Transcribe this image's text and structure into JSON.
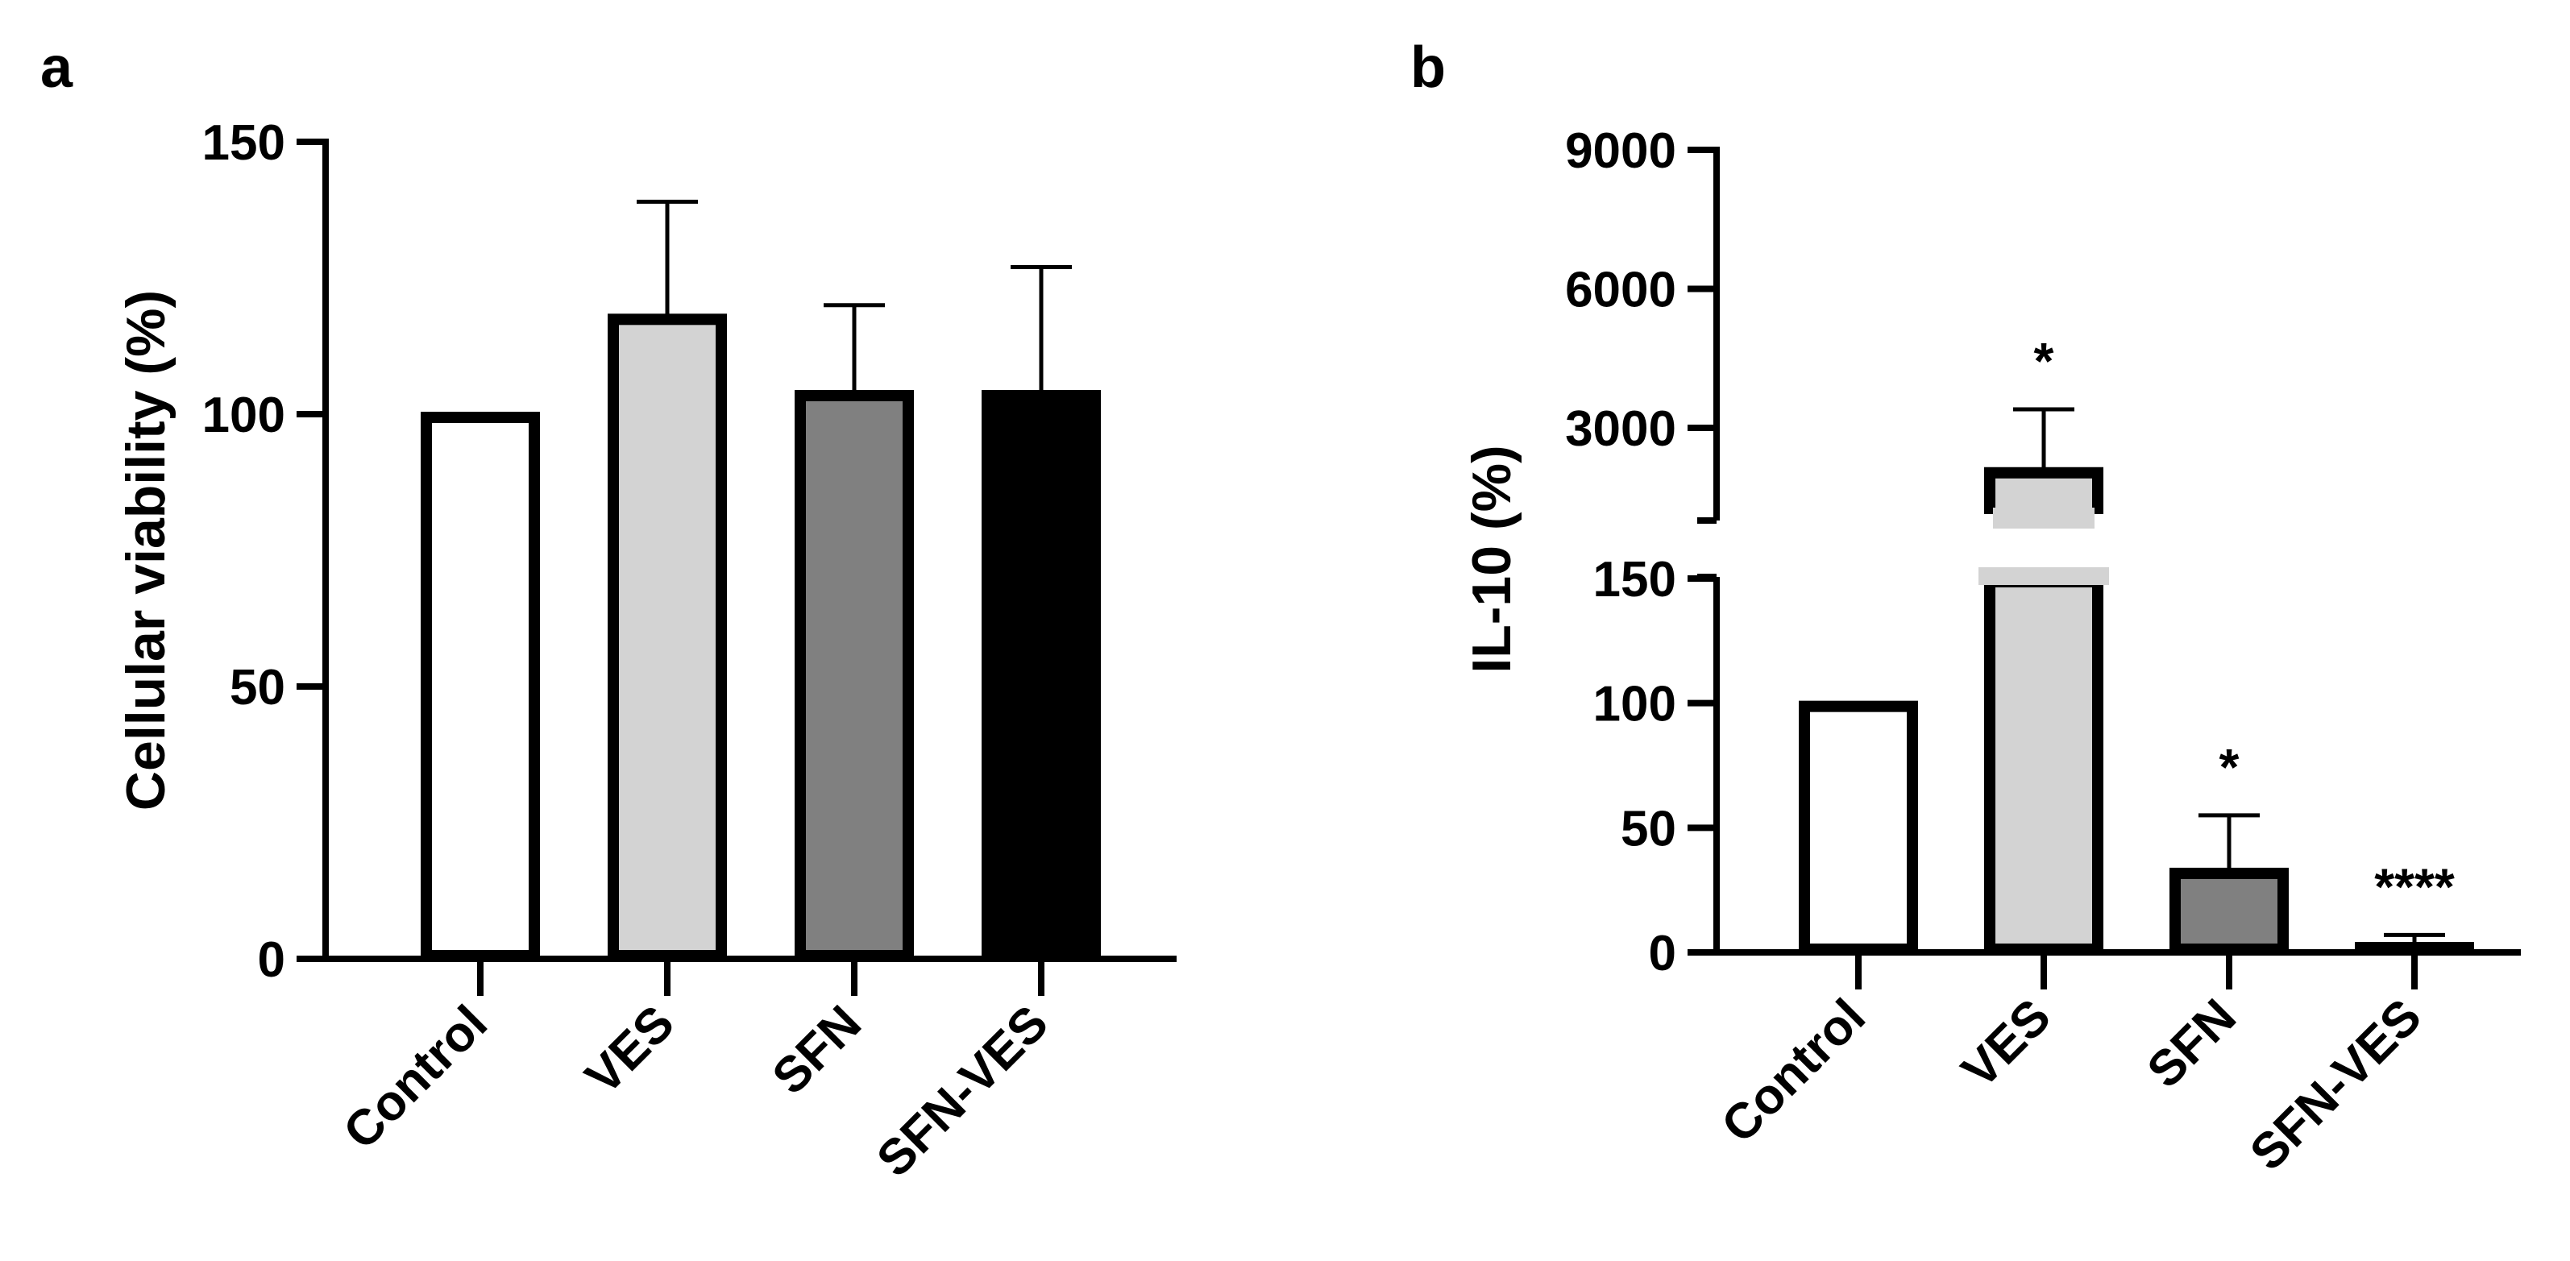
{
  "figure": {
    "panels": [
      "a",
      "b"
    ]
  },
  "chart_data": [
    {
      "panel": "a",
      "type": "bar",
      "title": "",
      "xlabel": "",
      "ylabel": "Cellular viability (%)",
      "ylim": [
        0,
        150
      ],
      "yticks": [
        0,
        50,
        100,
        150
      ],
      "categories": [
        "Control",
        "VES",
        "SFN",
        "SFN-VES"
      ],
      "values": [
        100,
        118,
        104,
        104
      ],
      "errors": [
        0,
        21,
        16,
        23
      ],
      "significance": [
        "",
        "",
        "",
        ""
      ],
      "fill_colors": [
        "#ffffff",
        "#d3d3d3",
        "#808080",
        "#000000"
      ]
    },
    {
      "panel": "b",
      "type": "bar",
      "title": "",
      "xlabel": "",
      "ylabel": "IL-10 (%)",
      "axis_break": true,
      "ylim_lower": [
        0,
        150
      ],
      "ylim_upper": [
        1000,
        9000
      ],
      "yticks_lower": [
        0,
        50,
        100,
        150
      ],
      "yticks_upper": [
        3000,
        6000,
        9000
      ],
      "categories": [
        "Control",
        "VES",
        "SFN",
        "SFN-VES"
      ],
      "values": [
        100,
        2100,
        33,
        1
      ],
      "errors": [
        0,
        1300,
        22,
        6
      ],
      "significance": [
        "",
        "*",
        "*",
        "****"
      ],
      "fill_colors": [
        "#ffffff",
        "#d3d3d3",
        "#808080",
        "#000000"
      ]
    }
  ]
}
